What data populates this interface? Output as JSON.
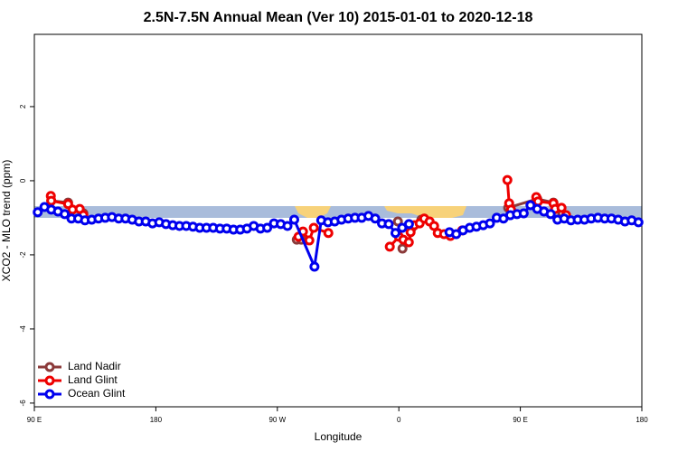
{
  "chart_data": {
    "type": "line",
    "title": "2.5N-7.5N Annual Mean (Ver 10)   2015-01-01 to 2020-12-18",
    "xlabel": "Longitude",
    "ylabel": "XCO2 - MLO trend (ppm)",
    "xlim": [
      -270,
      180
    ],
    "ylim": [
      -6.1,
      3.95
    ],
    "xticks": [
      {
        "value": -270,
        "label": "90 E"
      },
      {
        "value": -180,
        "label": "180"
      },
      {
        "value": -90,
        "label": "90 W"
      },
      0,
      {
        "value": 90,
        "label": "90 E"
      },
      180
    ],
    "yticks": [
      2,
      0,
      -2,
      -4,
      -6
    ],
    "legend": "bottomleft",
    "series": [
      {
        "name": "Land Nadir",
        "color": "#8b3a3a",
        "x": [
          -257.5,
          -245,
          -233.7,
          null,
          -75.6,
          -72.3,
          null,
          -0.7,
          2.7,
          16.7,
          null,
          81,
          102.5,
          114.5,
          121.2
        ],
        "values": [
          -0.54,
          -0.59,
          -0.88,
          null,
          -1.59,
          -1.59,
          null,
          -1.1,
          -1.83,
          -1.05,
          null,
          -0.73,
          -0.49,
          -0.59,
          -0.88
        ]
      },
      {
        "name": "Land Glint",
        "color": "#ee0000",
        "x": [
          -257.8,
          -257.5,
          -245,
          -241.7,
          -236.4,
          -233.7,
          null,
          -74.3,
          -71,
          -66.3,
          -63,
          -52.2,
          null,
          -6.7,
          0,
          3.3,
          7.4,
          8.7,
          11.4,
          15.4,
          18.8,
          22.8,
          26.1,
          28.8,
          33.5,
          38.2,
          46.9,
          null,
          80.4,
          81.7,
          83.1,
          null,
          101.8,
          103.1,
          114.5,
          115.8,
          120.5,
          123.9
        ],
        "values": [
          -0.41,
          -0.54,
          -0.63,
          -0.78,
          -0.76,
          -0.93,
          null,
          -1.51,
          -1.37,
          -1.61,
          -1.27,
          -1.41,
          null,
          -1.78,
          -1.51,
          -1.59,
          -1.66,
          -1.39,
          -1.2,
          -1.15,
          -1.02,
          -1.1,
          -1.22,
          -1.41,
          -1.44,
          -1.49,
          -1.34,
          null,
          0.02,
          -0.61,
          -0.78,
          null,
          -0.44,
          -0.56,
          -0.61,
          -0.76,
          -0.73,
          -0.93
        ]
      },
      {
        "name": "Ocean Glint",
        "color": "#0000ee",
        "x": [
          -267.5,
          -262.5,
          -257.5,
          -252.5,
          -247.5,
          -242.5,
          -237.5,
          -232.5,
          -227.5,
          -222.5,
          -217.5,
          -212.5,
          -207.5,
          -202.5,
          -197.5,
          -192.5,
          -187.5,
          -182.5,
          -177.5,
          -172.5,
          -167.5,
          -162.5,
          -157.5,
          -152.5,
          -147.5,
          -142.5,
          -137.5,
          -132.5,
          -127.5,
          -122.5,
          -117.5,
          -112.5,
          -107.5,
          -102.5,
          -97.5,
          -92.5,
          -87.5,
          -82.5,
          -77.5,
          -62.5,
          -57.5,
          -52.5,
          -47.5,
          -42.5,
          -37.5,
          -32.5,
          -27.5,
          -22.5,
          -17.5,
          -12.5,
          -7.5,
          -2.5,
          2.5,
          7.5,
          22.5,
          37.5,
          42.5,
          47.5,
          52.5,
          57.5,
          62.5,
          67.5,
          72.5,
          77.5,
          82.5,
          87.5,
          92.5,
          97.5,
          102.5,
          107.5,
          112.5,
          117.5,
          122.5,
          127.5,
          132.5,
          137.5,
          142.5,
          147.5,
          152.5,
          157.5,
          162.5,
          167.5,
          172.5,
          177.5
        ],
        "values": [
          -0.85,
          -0.71,
          -0.78,
          -0.83,
          -0.9,
          -1.02,
          -1.02,
          -1.07,
          -1.05,
          -1.02,
          -1.0,
          -0.98,
          -1.02,
          -1.02,
          -1.05,
          -1.1,
          -1.1,
          -1.15,
          -1.12,
          -1.17,
          -1.2,
          -1.22,
          -1.22,
          -1.24,
          -1.27,
          -1.27,
          -1.27,
          -1.29,
          -1.29,
          -1.32,
          -1.32,
          -1.29,
          -1.22,
          -1.29,
          -1.27,
          -1.15,
          -1.17,
          -1.22,
          -1.05,
          -2.32,
          -1.07,
          -1.12,
          -1.1,
          -1.05,
          -1.02,
          -1.0,
          -1.0,
          -0.95,
          -1.02,
          -1.15,
          -1.17,
          -1.41,
          -1.27,
          -1.17,
          null,
          -1.39,
          -1.44,
          -1.34,
          -1.27,
          -1.24,
          -1.2,
          -1.15,
          -1.0,
          -1.02,
          -0.93,
          -0.9,
          -0.88,
          -0.66,
          -0.76,
          -0.83,
          -0.9,
          -1.05,
          -1.02,
          -1.07,
          -1.05,
          -1.05,
          -1.02,
          -1.0,
          -1.02,
          -1.02,
          -1.05,
          -1.1,
          -1.07,
          -1.12
        ]
      }
    ]
  }
}
